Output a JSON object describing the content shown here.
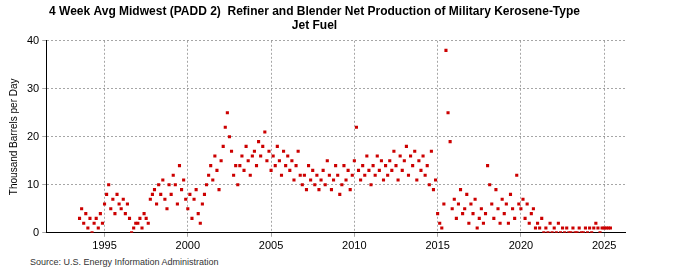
{
  "chart_data": {
    "type": "scatter",
    "title": [
      "4 Week Avg Midwest (PADD 2)  Refiner and Blender Net Production of Military Kerosene-Type",
      "Jet Fuel"
    ],
    "y_label": "Thousand Barrels per Day",
    "source": "Source: U.S. Energy Information Administration",
    "color": "#cc0000",
    "marker": "square",
    "grid": true,
    "xlim": [
      1991.5,
      2026.25
    ],
    "xticks": [
      1995,
      2000,
      2005,
      2010,
      2015,
      2020,
      2025
    ],
    "ylim": [
      0,
      40
    ],
    "yticks": [
      0,
      10,
      20,
      30,
      40
    ],
    "x": [
      1993.5,
      1993.625,
      1993.75,
      1993.875,
      1994,
      1994.125,
      1994.25,
      1994.375,
      1994.5,
      1994.625,
      1994.75,
      1994.875,
      1995,
      1995.125,
      1995.25,
      1995.375,
      1995.5,
      1995.625,
      1995.75,
      1995.875,
      1996,
      1996.125,
      1996.25,
      1996.375,
      1996.5,
      1996.625,
      1996.75,
      1996.875,
      1997,
      1997.125,
      1997.25,
      1997.375,
      1997.5,
      1997.625,
      1997.75,
      1997.875,
      1998,
      1998.125,
      1998.25,
      1998.375,
      1998.5,
      1998.625,
      1998.75,
      1998.875,
      1999,
      1999.125,
      1999.25,
      1999.375,
      1999.5,
      1999.625,
      1999.75,
      1999.875,
      2000,
      2000.125,
      2000.25,
      2000.375,
      2000.5,
      2000.625,
      2000.75,
      2000.875,
      2001,
      2001.125,
      2001.25,
      2001.375,
      2001.5,
      2001.625,
      2001.75,
      2001.875,
      2002,
      2002.125,
      2002.25,
      2002.375,
      2002.5,
      2002.625,
      2002.75,
      2002.875,
      2003,
      2003.125,
      2003.25,
      2003.375,
      2003.5,
      2003.625,
      2003.75,
      2003.875,
      2004,
      2004.125,
      2004.25,
      2004.375,
      2004.5,
      2004.625,
      2004.75,
      2004.875,
      2005,
      2005.125,
      2005.25,
      2005.375,
      2005.5,
      2005.625,
      2005.75,
      2005.875,
      2006,
      2006.125,
      2006.25,
      2006.375,
      2006.5,
      2006.625,
      2006.75,
      2006.875,
      2007,
      2007.125,
      2007.25,
      2007.375,
      2007.5,
      2007.625,
      2007.75,
      2007.875,
      2008,
      2008.125,
      2008.25,
      2008.375,
      2008.5,
      2008.625,
      2008.75,
      2008.875,
      2009,
      2009.125,
      2009.25,
      2009.375,
      2009.5,
      2009.625,
      2009.75,
      2009.875,
      2010,
      2010.125,
      2010.25,
      2010.375,
      2010.5,
      2010.625,
      2010.75,
      2010.875,
      2011,
      2011.125,
      2011.25,
      2011.375,
      2011.5,
      2011.625,
      2011.75,
      2011.875,
      2012,
      2012.125,
      2012.25,
      2012.375,
      2012.5,
      2012.625,
      2012.75,
      2012.875,
      2013,
      2013.125,
      2013.25,
      2013.375,
      2013.5,
      2013.625,
      2013.75,
      2013.875,
      2014,
      2014.125,
      2014.25,
      2014.375,
      2014.5,
      2014.625,
      2014.75,
      2014.875,
      2015,
      2015.125,
      2015.25,
      2015.375,
      2015.5,
      2015.625,
      2015.75,
      2015.875,
      2016,
      2016.125,
      2016.25,
      2016.375,
      2016.5,
      2016.625,
      2016.75,
      2016.875,
      2017,
      2017.125,
      2017.25,
      2017.375,
      2017.5,
      2017.625,
      2017.75,
      2017.875,
      2018,
      2018.125,
      2018.25,
      2018.375,
      2018.5,
      2018.625,
      2018.75,
      2018.875,
      2019,
      2019.125,
      2019.25,
      2019.375,
      2019.5,
      2019.625,
      2019.75,
      2019.875,
      2020,
      2020.125,
      2020.25,
      2020.375,
      2020.5,
      2020.625,
      2020.75,
      2020.875,
      2021,
      2021.125,
      2021.25,
      2021.375,
      2021.5,
      2021.625,
      2021.75,
      2021.875,
      2022,
      2022.125,
      2022.25,
      2022.375,
      2022.5,
      2022.625,
      2022.75,
      2022.875,
      2023,
      2023.125,
      2023.25,
      2023.375,
      2023.5,
      2023.625,
      2023.75,
      2023.875,
      2024,
      2024.125,
      2024.25,
      2024.375,
      2024.5,
      2024.625,
      2024.75,
      2024.875,
      2025,
      2025.125,
      2025.25,
      2025.375
    ],
    "values": [
      3,
      5,
      2,
      4,
      1,
      3,
      0,
      2,
      3,
      1,
      4,
      2,
      6,
      8,
      10,
      5,
      7,
      4,
      8,
      6,
      5,
      7,
      4,
      6,
      3,
      0,
      1,
      2,
      2,
      3,
      1,
      4,
      3,
      2,
      7,
      8,
      9,
      6,
      10,
      8,
      11,
      7,
      5,
      10,
      8,
      12,
      10,
      6,
      14,
      9,
      11,
      7,
      5,
      8,
      3,
      7,
      9,
      4,
      2,
      6,
      8,
      10,
      12,
      14,
      11,
      16,
      13,
      9,
      15,
      18,
      22,
      25,
      20,
      17,
      12,
      14,
      10,
      14,
      16,
      13,
      18,
      15,
      12,
      16,
      17,
      14,
      19,
      16,
      18,
      21,
      15,
      17,
      13,
      16,
      14,
      18,
      15,
      12,
      17,
      14,
      16,
      13,
      15,
      11,
      14,
      17,
      12,
      10,
      12,
      9,
      14,
      11,
      13,
      10,
      12,
      9,
      11,
      13,
      10,
      15,
      12,
      9,
      11,
      14,
      12,
      8,
      10,
      14,
      11,
      13,
      9,
      12,
      15,
      22,
      13,
      11,
      14,
      12,
      16,
      13,
      10,
      14,
      12,
      16,
      13,
      15,
      11,
      14,
      12,
      15,
      13,
      17,
      14,
      11,
      16,
      13,
      15,
      18,
      12,
      16,
      14,
      17,
      11,
      15,
      13,
      16,
      12,
      14,
      10,
      17,
      9,
      11,
      4,
      2,
      1,
      6,
      38,
      25,
      19,
      5,
      7,
      3,
      6,
      9,
      4,
      5,
      8,
      2,
      6,
      4,
      7,
      1,
      3,
      5,
      2,
      4,
      14,
      10,
      6,
      3,
      9,
      5,
      2,
      7,
      4,
      6,
      2,
      8,
      5,
      3,
      12,
      6,
      5,
      7,
      3,
      6,
      2,
      4,
      5,
      1,
      2,
      1,
      3,
      0,
      1,
      0,
      2,
      0,
      1,
      0,
      2,
      0,
      1,
      0,
      1,
      0,
      0,
      1,
      0,
      0,
      1,
      0,
      0,
      1,
      0,
      1,
      0,
      1,
      2,
      1,
      0,
      1,
      1,
      1,
      1,
      1
    ]
  }
}
